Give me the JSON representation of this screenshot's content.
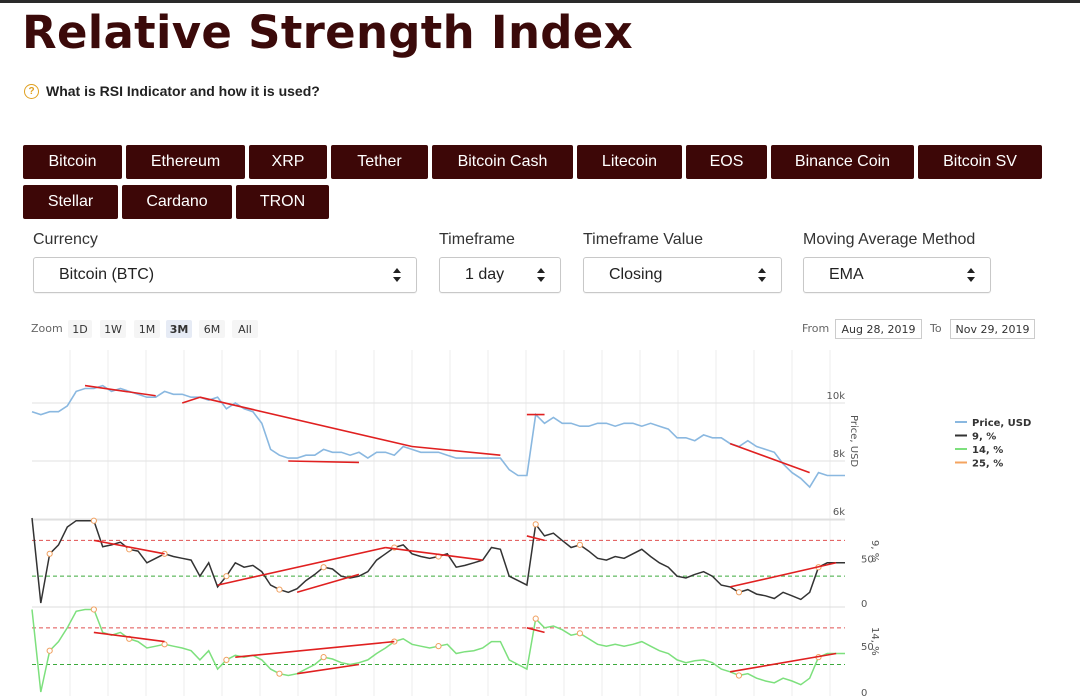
{
  "page": {
    "title": "Relative Strength Index",
    "help_link": "What is RSI Indicator and how it is used?"
  },
  "coins": [
    "Bitcoin",
    "Ethereum",
    "XRP",
    "Tether",
    "Bitcoin Cash",
    "Litecoin",
    "EOS",
    "Binance Coin",
    "Bitcoin SV",
    "Stellar",
    "Cardano",
    "TRON"
  ],
  "filters": {
    "currency": {
      "label": "Currency",
      "value": "Bitcoin (BTC)"
    },
    "timeframe": {
      "label": "Timeframe",
      "value": "1 day"
    },
    "timeframe_value": {
      "label": "Timeframe Value",
      "value": "Closing"
    },
    "ma_method": {
      "label": "Moving Average Method",
      "value": "EMA"
    }
  },
  "zoom": {
    "label": "Zoom",
    "options": [
      "1D",
      "1W",
      "1M",
      "3M",
      "6M",
      "All"
    ],
    "selected": "3M"
  },
  "range": {
    "from_label": "From",
    "from": "Aug 28, 2019",
    "to_label": "To",
    "to": "Nov 29, 2019"
  },
  "colors": {
    "brand": "#3d0707",
    "price": "#8ab8e0",
    "rsi9": "#333333",
    "rsi14": "#7de07d",
    "rsi25": "#f4a460",
    "trend": "#e02020",
    "overbought": "#e05050",
    "oversold": "#3caa3c"
  },
  "chart_data": {
    "type": "line",
    "x": [
      1,
      2,
      3,
      4,
      5,
      6,
      7,
      8,
      9,
      10,
      11,
      12,
      13,
      14,
      15,
      16,
      17,
      18,
      19,
      20,
      21,
      22,
      23,
      24,
      25,
      26,
      27,
      28,
      29,
      30,
      31,
      32,
      33,
      34,
      35,
      36,
      37,
      38,
      39,
      40,
      41,
      42,
      43,
      44,
      45,
      46,
      47,
      48,
      49,
      50,
      51,
      52,
      53,
      54,
      55,
      56,
      57,
      58,
      59,
      60,
      61,
      62,
      63,
      64,
      65,
      66,
      67,
      68,
      69,
      70,
      71,
      72,
      73,
      74,
      75,
      76,
      77,
      78,
      79,
      80,
      81,
      82,
      83,
      84,
      85,
      86,
      87,
      88,
      89,
      90,
      91,
      92,
      93
    ],
    "panels": [
      {
        "name": "price",
        "ylabel": "Price, USD",
        "ticks": [
          {
            "v": 10000,
            "label": "10k"
          },
          {
            "v": 8000,
            "label": "8k"
          },
          {
            "v": 6000,
            "label": "6k"
          }
        ],
        "ylim": [
          6000,
          11500
        ],
        "series": [
          {
            "name": "Price, USD",
            "values": [
              9700,
              9600,
              9700,
              9700,
              9900,
              10400,
              10500,
              10500,
              10600,
              10400,
              10500,
              10400,
              10300,
              10200,
              10200,
              10400,
              10300,
              10300,
              10200,
              10200,
              10100,
              10200,
              9800,
              10000,
              9800,
              9700,
              9300,
              8400,
              8200,
              8100,
              8100,
              8200,
              8200,
              8400,
              8300,
              8300,
              8200,
              8300,
              8100,
              8300,
              8300,
              8200,
              8500,
              8400,
              8300,
              8300,
              8300,
              8200,
              8100,
              8100,
              8100,
              8100,
              8100,
              8100,
              7700,
              7500,
              7500,
              9600,
              9300,
              9500,
              9300,
              9300,
              9200,
              9200,
              9300,
              9300,
              9200,
              9300,
              9300,
              9200,
              9300,
              9200,
              9100,
              8800,
              8800,
              8700,
              8900,
              8800,
              8800,
              8600,
              8500,
              8700,
              8500,
              8400,
              8300,
              7900,
              7600,
              7400,
              7100,
              7600,
              7500,
              7500,
              7500
            ]
          }
        ]
      },
      {
        "name": "rsi9",
        "ylabel": "9, %",
        "ticks": [
          {
            "v": 50,
            "label": "50"
          },
          {
            "v": 0,
            "label": "0"
          }
        ],
        "ylim": [
          0,
          100
        ],
        "overbought": 70,
        "oversold": 30,
        "series": [
          {
            "name": "9, %",
            "values": [
              95,
              0,
              55,
              65,
              85,
              92,
              92,
              92,
              63,
              65,
              68,
              60,
              58,
              45,
              50,
              55,
              52,
              50,
              48,
              30,
              45,
              18,
              30,
              45,
              40,
              42,
              35,
              20,
              15,
              12,
              16,
              25,
              32,
              40,
              38,
              30,
              28,
              30,
              35,
              48,
              55,
              62,
              65,
              55,
              52,
              50,
              52,
              55,
              40,
              42,
              45,
              48,
              62,
              60,
              30,
              25,
              20,
              88,
              75,
              78,
              70,
              62,
              65,
              58,
              50,
              48,
              52,
              50,
              55,
              60,
              52,
              45,
              40,
              30,
              28,
              32,
              35,
              30,
              20,
              18,
              12,
              15,
              10,
              8,
              5,
              12,
              8,
              4,
              12,
              40,
              45,
              45,
              45
            ]
          }
        ]
      },
      {
        "name": "rsi14",
        "ylabel": "14, %",
        "ticks": [
          {
            "v": 50,
            "label": "50"
          },
          {
            "v": 0,
            "label": "0"
          }
        ],
        "ylim": [
          0,
          100
        ],
        "overbought": 70,
        "oversold": 30,
        "series": [
          {
            "name": "14, %",
            "values": [
              90,
              0,
              45,
              55,
              70,
              88,
              90,
              90,
              65,
              62,
              65,
              58,
              55,
              48,
              50,
              52,
              50,
              48,
              45,
              35,
              45,
              25,
              35,
              40,
              38,
              40,
              35,
              25,
              20,
              18,
              20,
              25,
              30,
              38,
              36,
              32,
              30,
              32,
              35,
              42,
              48,
              55,
              58,
              52,
              50,
              48,
              50,
              52,
              42,
              44,
              45,
              48,
              55,
              55,
              35,
              30,
              25,
              80,
              70,
              72,
              68,
              62,
              64,
              58,
              52,
              50,
              52,
              50,
              52,
              55,
              50,
              45,
              42,
              35,
              32,
              34,
              35,
              32,
              25,
              22,
              18,
              20,
              15,
              12,
              10,
              15,
              12,
              8,
              15,
              38,
              42,
              42,
              42
            ]
          },
          {
            "name": "25, %",
            "values": []
          }
        ]
      }
    ],
    "legend": {
      "position": "right",
      "entries": [
        "Price, USD",
        "9, %",
        "14, %",
        "25, %"
      ]
    },
    "xlabel": "",
    "grid": true
  }
}
